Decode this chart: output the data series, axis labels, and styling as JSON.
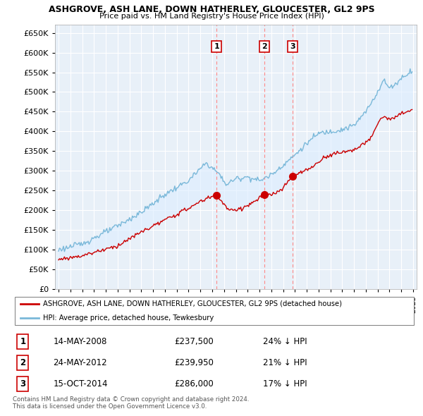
{
  "title": "ASHGROVE, ASH LANE, DOWN HATHERLEY, GLOUCESTER, GL2 9PS",
  "subtitle": "Price paid vs. HM Land Registry's House Price Index (HPI)",
  "hpi_label": "HPI: Average price, detached house, Tewkesbury",
  "property_label": "ASHGROVE, ASH LANE, DOWN HATHERLEY, GLOUCESTER, GL2 9PS (detached house)",
  "sales": [
    {
      "num": 1,
      "date": "14-MAY-2008",
      "price": 237500,
      "pct": "24%",
      "x_year": 2008.37
    },
    {
      "num": 2,
      "date": "24-MAY-2012",
      "price": 239950,
      "pct": "21%",
      "x_year": 2012.39
    },
    {
      "num": 3,
      "date": "15-OCT-2014",
      "price": 286000,
      "pct": "17%",
      "x_year": 2014.79
    }
  ],
  "ylim": [
    0,
    670000
  ],
  "yticks": [
    0,
    50000,
    100000,
    150000,
    200000,
    250000,
    300000,
    350000,
    400000,
    450000,
    500000,
    550000,
    600000,
    650000
  ],
  "xlim": [
    1994.7,
    2025.3
  ],
  "hpi_color": "#7ab8d9",
  "hpi_fill_color": "#ddeeff",
  "property_color": "#cc0000",
  "vline_color": "#ff8888",
  "bg_color": "#e8f0f8",
  "grid_color": "#ffffff",
  "footer_line1": "Contains HM Land Registry data © Crown copyright and database right 2024.",
  "footer_line2": "This data is licensed under the Open Government Licence v3.0."
}
